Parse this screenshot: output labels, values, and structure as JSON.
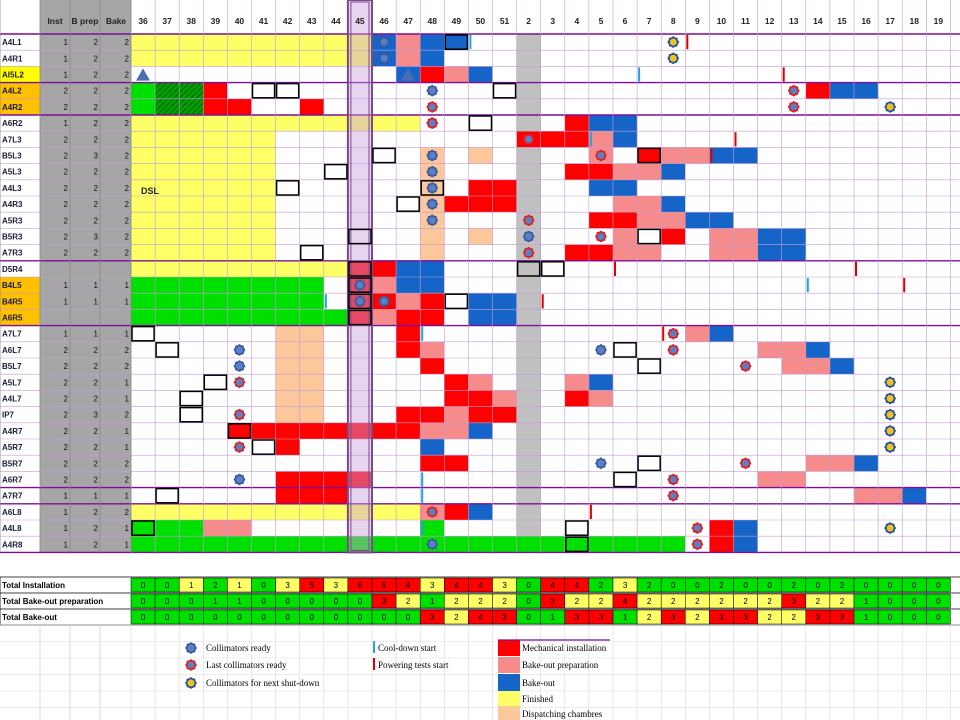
{
  "colors": {
    "mechanical": "#ff0000",
    "bakeout_prep": "#f58b8b",
    "bakeout": "#1565c8",
    "finished": "#ffff66",
    "dispatching": "#fcc89b",
    "green": "#00e000",
    "grid": "#7b0d9b",
    "weekgray": "#c0c0c0",
    "highlight": "#c9a0dc"
  },
  "headers": {
    "inst": "Inst",
    "bprep": "B prep",
    "bake": "Bake",
    "weeks": [
      "36",
      "37",
      "38",
      "39",
      "40",
      "41",
      "42",
      "43",
      "44",
      "45",
      "46",
      "47",
      "48",
      "49",
      "50",
      "51",
      "2",
      "3",
      "4",
      "5",
      "6",
      "7",
      "8",
      "9",
      "10",
      "11",
      "12",
      "13",
      "14",
      "15",
      "16",
      "17",
      "18",
      "19"
    ]
  },
  "rows": [
    {
      "name": "A4L1",
      "inst": "1",
      "bprep": "2",
      "bake": "2",
      "hl": false
    },
    {
      "name": "A4R1",
      "inst": "1",
      "bprep": "2",
      "bake": "2",
      "hl": false
    },
    {
      "name": "AI5L2",
      "inst": "1",
      "bprep": "2",
      "bake": "2",
      "hl": true
    },
    {
      "name": "A4L2",
      "inst": "2",
      "bprep": "2",
      "bake": "2",
      "hl": true
    },
    {
      "name": "A4R2",
      "inst": "2",
      "bprep": "2",
      "bake": "2",
      "hl": true
    },
    {
      "name": "A6R2",
      "inst": "1",
      "bprep": "2",
      "bake": "2",
      "hl": false
    },
    {
      "name": "A7L3",
      "inst": "2",
      "bprep": "2",
      "bake": "2",
      "hl": false
    },
    {
      "name": "B5L3",
      "inst": "2",
      "bprep": "3",
      "bake": "2",
      "hl": false
    },
    {
      "name": "A5L3",
      "inst": "2",
      "bprep": "2",
      "bake": "2",
      "hl": false
    },
    {
      "name": "A4L3",
      "inst": "2",
      "bprep": "2",
      "bake": "2",
      "hl": false
    },
    {
      "name": "A4R3",
      "inst": "2",
      "bprep": "2",
      "bake": "2",
      "hl": false
    },
    {
      "name": "A5R3",
      "inst": "2",
      "bprep": "2",
      "bake": "2",
      "hl": false
    },
    {
      "name": "B5R3",
      "inst": "2",
      "bprep": "3",
      "bake": "2",
      "hl": false
    },
    {
      "name": "A7R3",
      "inst": "2",
      "bprep": "2",
      "bake": "2",
      "hl": false
    },
    {
      "name": "D5R4",
      "inst": "",
      "bprep": "",
      "bake": "",
      "hl": false
    },
    {
      "name": "B4L5",
      "inst": "1",
      "bprep": "1",
      "bake": "1",
      "hl": true
    },
    {
      "name": "B4R5",
      "inst": "1",
      "bprep": "1",
      "bake": "1",
      "hl": true
    },
    {
      "name": "A6R5",
      "inst": "",
      "bprep": "",
      "bake": "",
      "hl": true
    },
    {
      "name": "A7L7",
      "inst": "1",
      "bprep": "1",
      "bake": "1",
      "hl": false
    },
    {
      "name": "A6L7",
      "inst": "2",
      "bprep": "2",
      "bake": "2",
      "hl": false
    },
    {
      "name": "B5L7",
      "inst": "2",
      "bprep": "2",
      "bake": "2",
      "hl": false
    },
    {
      "name": "A5L7",
      "inst": "2",
      "bprep": "2",
      "bake": "1",
      "hl": false
    },
    {
      "name": "A4L7",
      "inst": "2",
      "bprep": "2",
      "bake": "1",
      "hl": false
    },
    {
      "name": "IP7",
      "inst": "2",
      "bprep": "3",
      "bake": "2",
      "hl": false
    },
    {
      "name": "A4R7",
      "inst": "2",
      "bprep": "2",
      "bake": "1",
      "hl": false
    },
    {
      "name": "A5R7",
      "inst": "2",
      "bprep": "2",
      "bake": "1",
      "hl": false
    },
    {
      "name": "B5R7",
      "inst": "2",
      "bprep": "2",
      "bake": "2",
      "hl": false
    },
    {
      "name": "A6R7",
      "inst": "2",
      "bprep": "2",
      "bake": "2",
      "hl": false
    },
    {
      "name": "A7R7",
      "inst": "1",
      "bprep": "1",
      "bake": "1",
      "hl": false
    },
    {
      "name": "A6L8",
      "inst": "1",
      "bprep": "2",
      "bake": "2",
      "hl": false
    },
    {
      "name": "A4L8",
      "inst": "1",
      "bprep": "2",
      "bake": "1",
      "hl": false
    },
    {
      "name": "A4R8",
      "inst": "1",
      "bprep": "2",
      "bake": "1",
      "hl": false
    }
  ],
  "dsl_label": "DSL",
  "totals": [
    {
      "label": "Total Installation",
      "values": [
        "0",
        "0",
        "1",
        "2",
        "1",
        "0",
        "3",
        "5",
        "3",
        "6",
        "5",
        "4",
        "3",
        "4",
        "4",
        "3",
        "0",
        "4",
        "4",
        "2",
        "3",
        "2",
        "0",
        "0",
        "2",
        "0",
        "0",
        "2",
        "0",
        "2",
        "0",
        "0",
        "0",
        "0"
      ]
    },
    {
      "label": "Total Bake-out preparation",
      "values": [
        "0",
        "0",
        "0",
        "1",
        "1",
        "0",
        "0",
        "0",
        "0",
        "0",
        "3",
        "2",
        "1",
        "2",
        "2",
        "2",
        "0",
        "3",
        "2",
        "2",
        "4",
        "2",
        "2",
        "2",
        "2",
        "2",
        "2",
        "3",
        "2",
        "2",
        "1",
        "0",
        "0",
        "0"
      ]
    },
    {
      "label": "Total Bake-out",
      "values": [
        "0",
        "0",
        "0",
        "0",
        "0",
        "0",
        "0",
        "0",
        "0",
        "0",
        "0",
        "0",
        "3",
        "2",
        "4",
        "3",
        "0",
        "1",
        "3",
        "3",
        "1",
        "2",
        "3",
        "2",
        "3",
        "3",
        "2",
        "2",
        "3",
        "3",
        "1",
        "0",
        "0",
        "0"
      ]
    }
  ],
  "legend": {
    "collimators_ready": "Collimators ready",
    "last_collimators_ready": "Last collimators ready",
    "collimators_next": "Collimators for next shut-down",
    "cooldown": "Cool-down start",
    "powering": "Powering tests start",
    "mechanical": "Mechanical installation",
    "bakeout_prep": "Bake-out preparation",
    "bakeout": "Bake-out",
    "finished": "Finished",
    "dispatching": "Dispatching chambres"
  }
}
